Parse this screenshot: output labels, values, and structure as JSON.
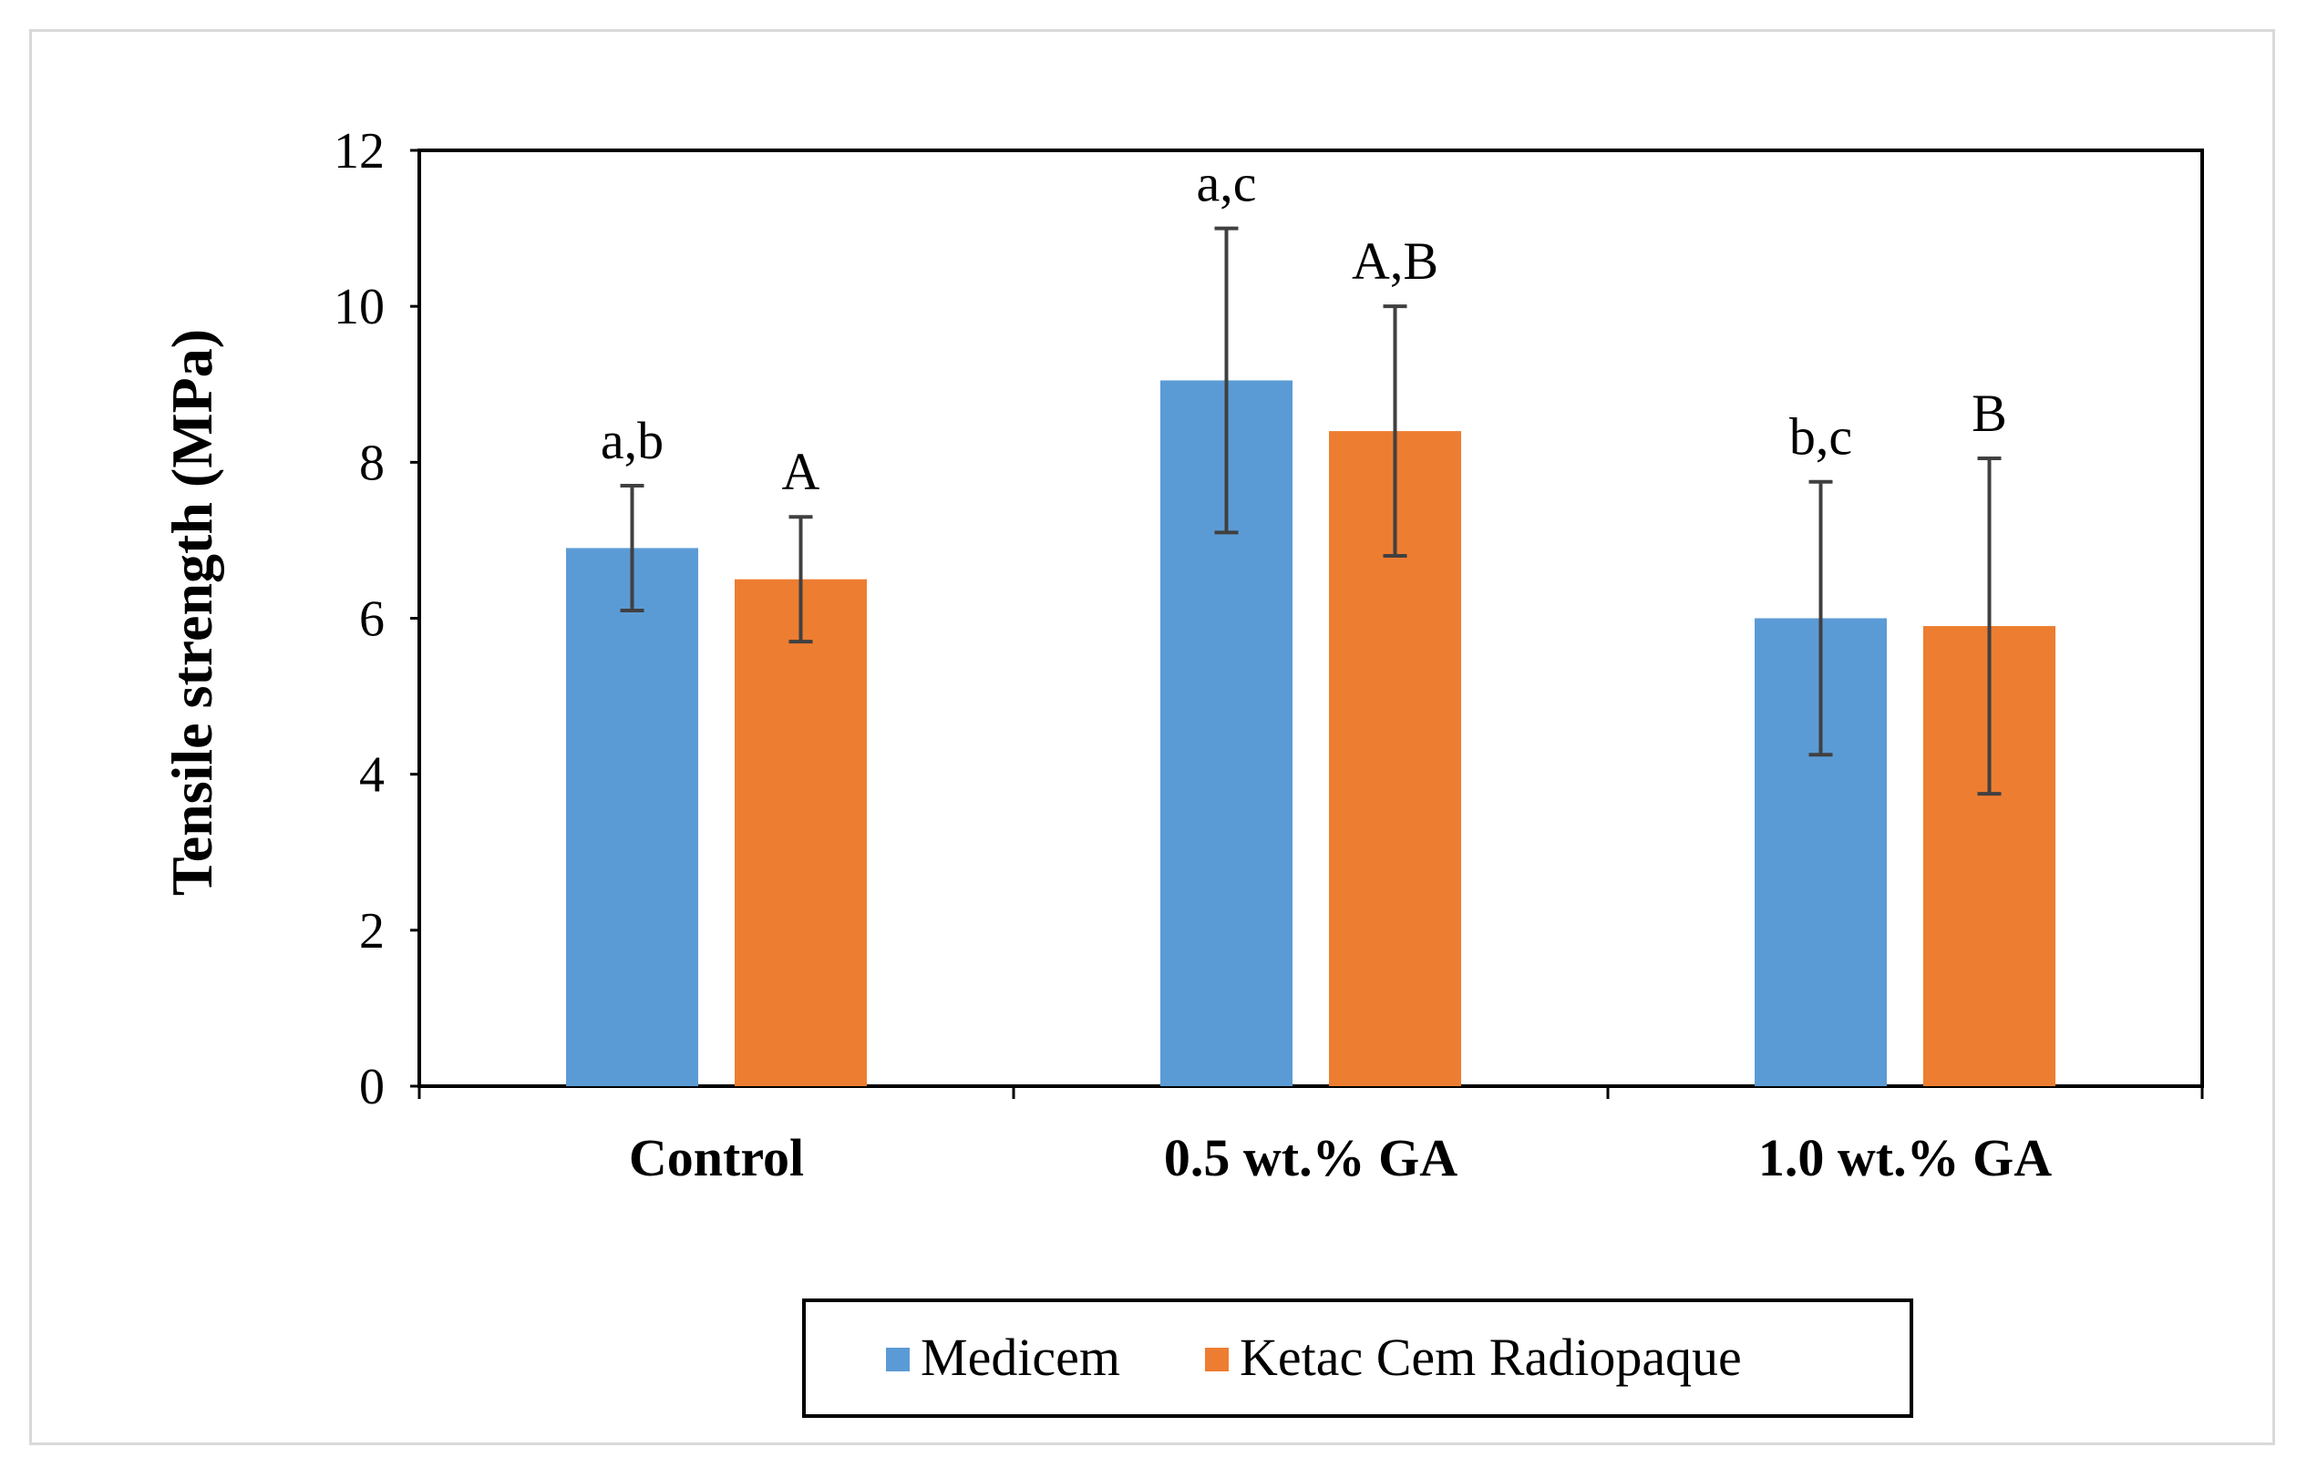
{
  "chart_data": {
    "type": "bar",
    "title": "",
    "xlabel": "",
    "ylabel": "Tensile strength (MPa)",
    "ylim": [
      0,
      12
    ],
    "yticks": [
      0,
      2,
      4,
      6,
      8,
      10,
      12
    ],
    "grid": false,
    "legend_position": "bottom",
    "categories": [
      "Control",
      "0.5 wt.% GA",
      "1.0 wt.% GA"
    ],
    "series": [
      {
        "name": "Medicem",
        "color": "#5b9bd5",
        "values": [
          6.9,
          9.05,
          6.0
        ],
        "errors": [
          0.8,
          1.95,
          1.75
        ],
        "labels": [
          "a,b",
          "a,c",
          "b,c"
        ]
      },
      {
        "name": "Ketac Cem Radiopaque",
        "color": "#ed7d31",
        "values": [
          6.5,
          8.4,
          5.9
        ],
        "errors": [
          0.8,
          1.6,
          2.15
        ],
        "labels": [
          "A",
          "A,B",
          "B"
        ]
      }
    ]
  }
}
